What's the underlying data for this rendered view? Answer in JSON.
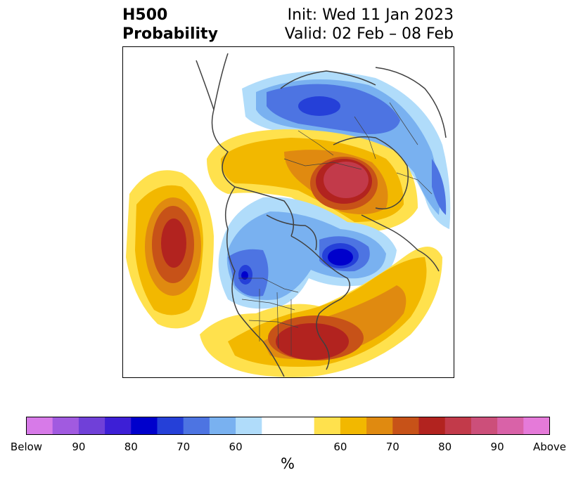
{
  "title": {
    "variable": "H500",
    "product": "Probability",
    "init": "Init: Wed 11 Jan 2023",
    "valid": "Valid: 02 Feb – 08 Feb"
  },
  "colorbar": {
    "colors": [
      "#d77ae8",
      "#a15ae0",
      "#7040d8",
      "#3d1fd6",
      "#0000cc",
      "#2540d8",
      "#4d74e2",
      "#79b1f0",
      "#b0dcfa",
      "#ffffff",
      "#ffe14d",
      "#f2b800",
      "#e08a10",
      "#c75218",
      "#b2231f",
      "#c23a4a",
      "#cc4f7a",
      "#d962a8",
      "#e57ad9"
    ],
    "labels": [
      "Below",
      "90",
      "80",
      "70",
      "60",
      "60",
      "70",
      "80",
      "90",
      "Above"
    ],
    "unit": "%"
  }
}
